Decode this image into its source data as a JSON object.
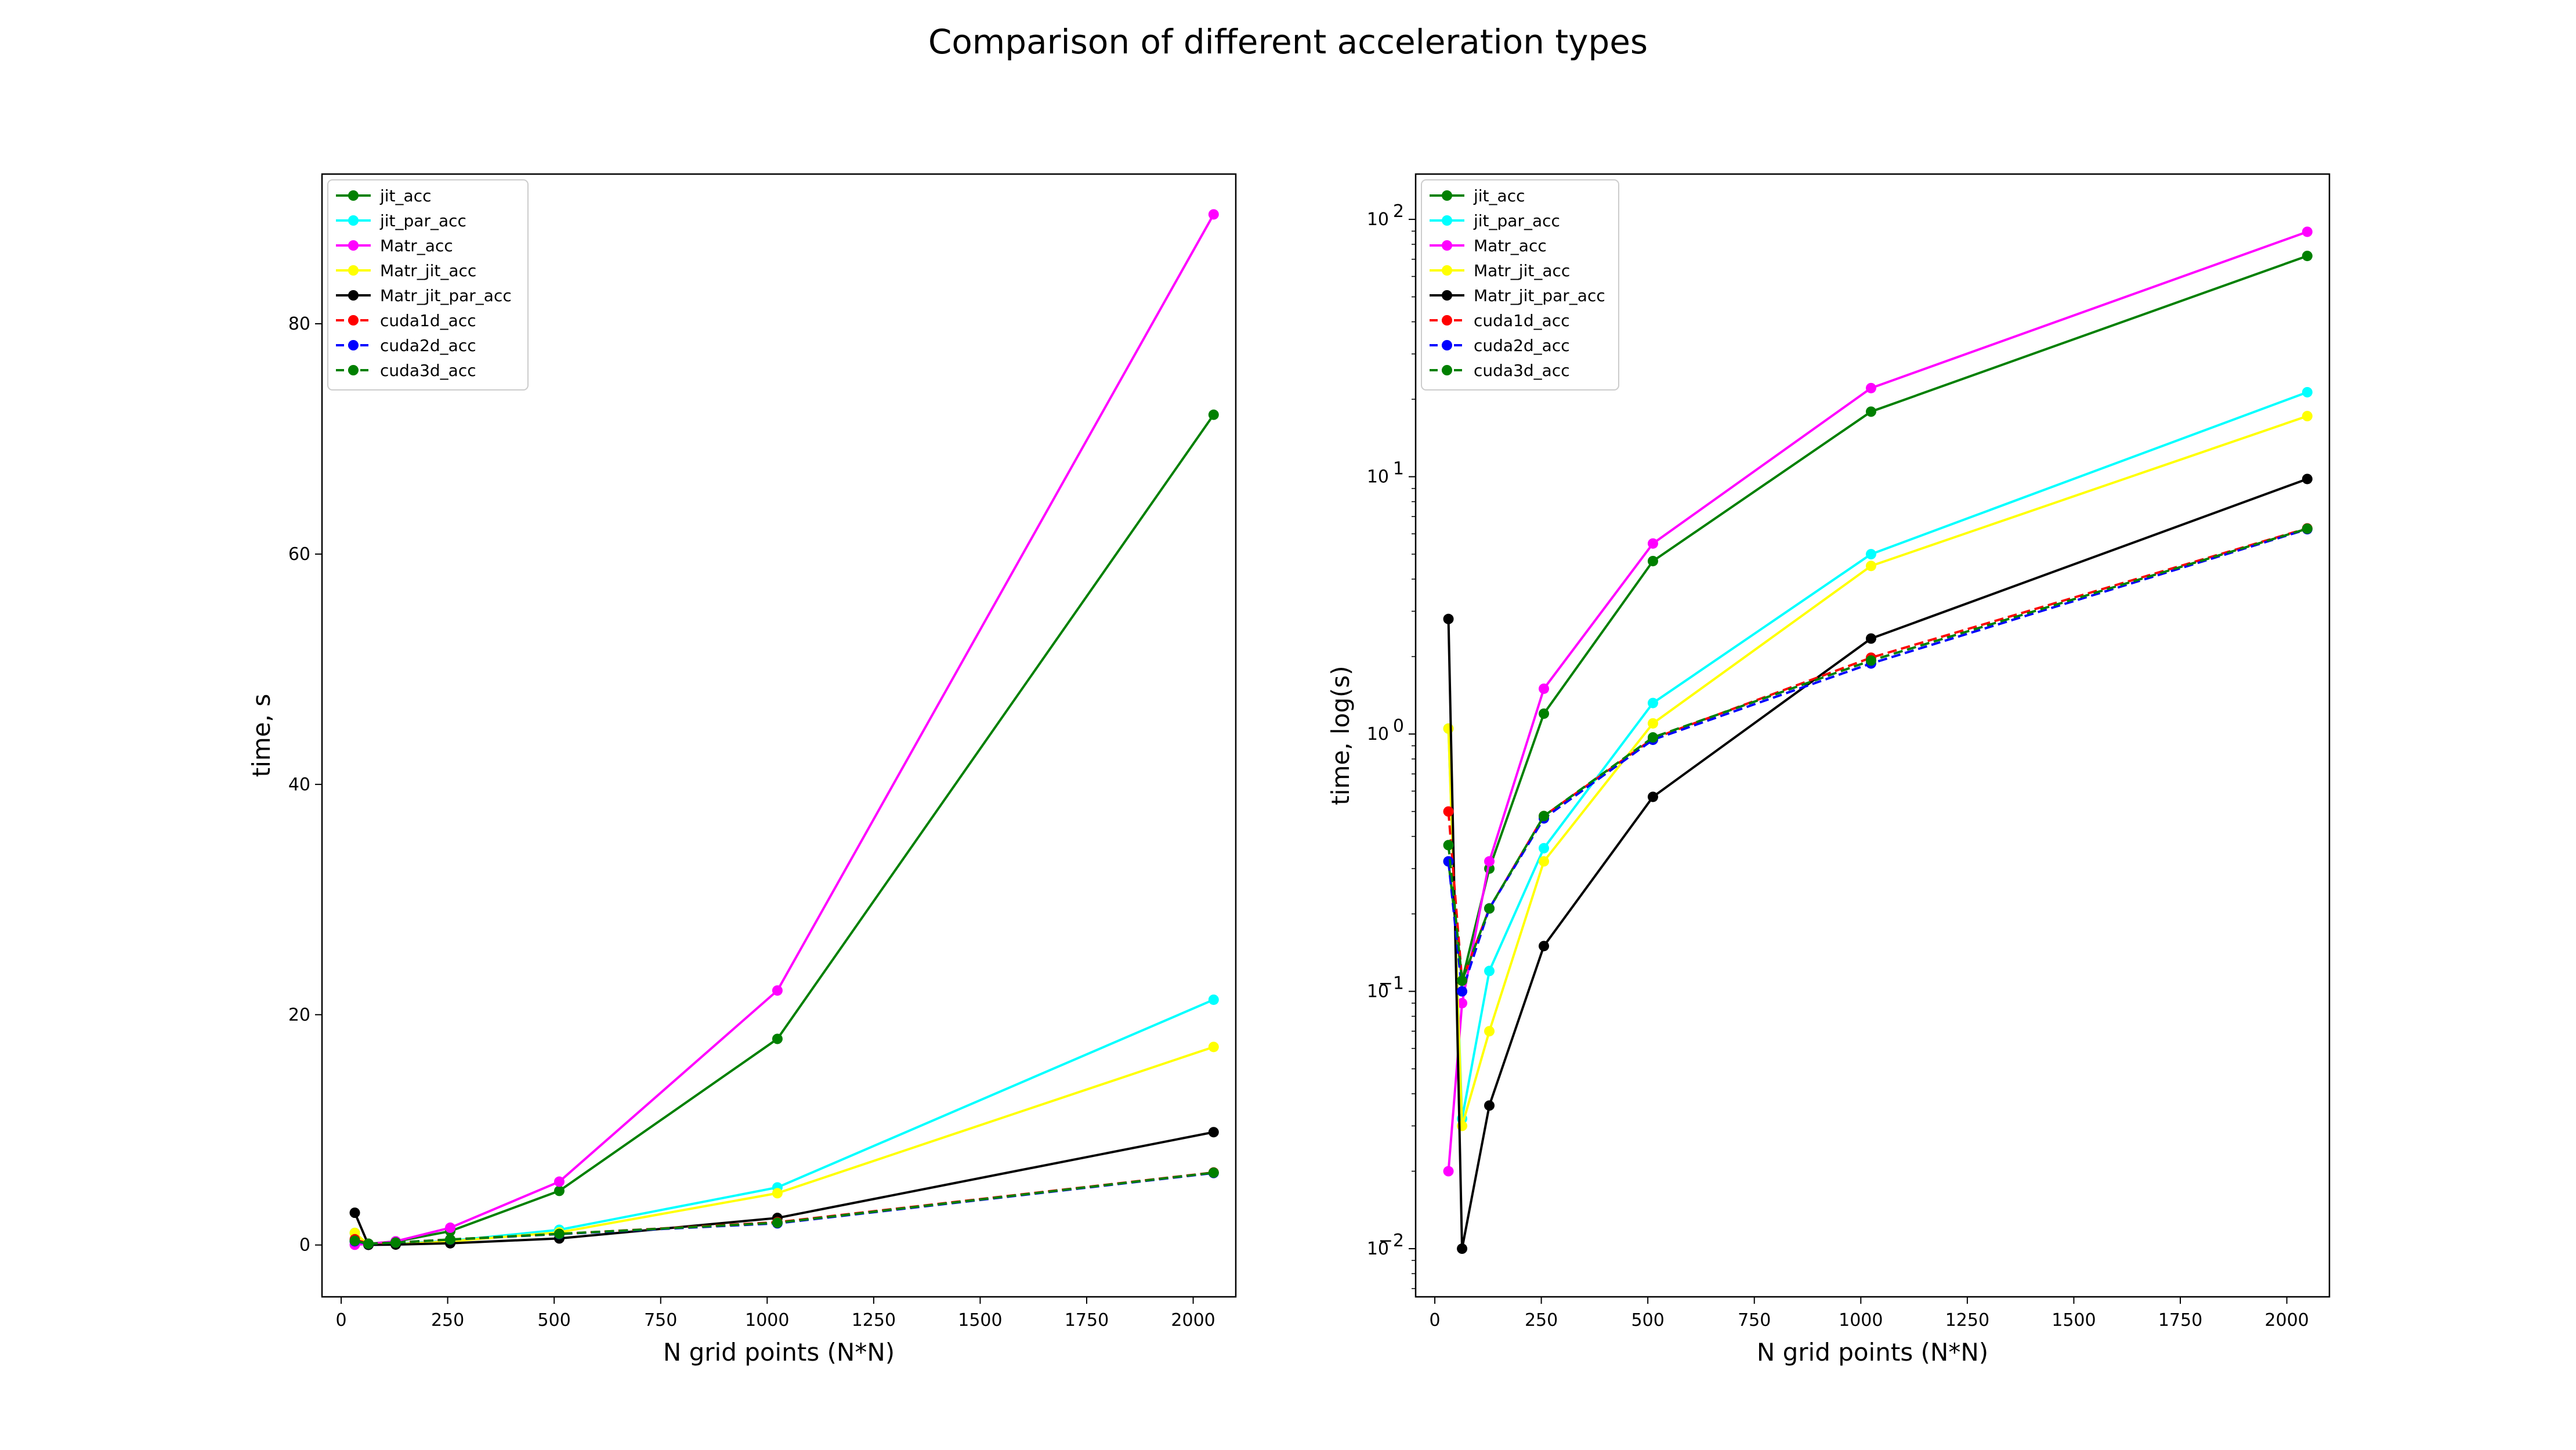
{
  "figure": {
    "title": "Comparison of different acceleration types"
  },
  "chart_data": [
    {
      "type": "line",
      "yscale": "linear",
      "xlabel": "N grid points (N*N)",
      "ylabel": "time, s",
      "xlim": [
        -45,
        2100
      ],
      "ylim": [
        -4.5,
        93
      ],
      "xticks": [
        0,
        250,
        500,
        750,
        1000,
        1250,
        1500,
        1750,
        2000
      ],
      "yticks": [
        0,
        20,
        40,
        60,
        80
      ],
      "grid": false,
      "legend_position": "upper-left",
      "x": [
        32,
        64,
        128,
        256,
        512,
        1024,
        2048
      ],
      "series": [
        {
          "name": "jit_acc",
          "color": "#008000",
          "style": "solid",
          "values": [
            0.32,
            0.11,
            0.3,
            1.2,
            4.7,
            17.9,
            72.1
          ]
        },
        {
          "name": "jit_par_acc",
          "color": "#00ffff",
          "style": "solid",
          "values": [
            1.05,
            0.032,
            0.12,
            0.36,
            1.32,
            5.0,
            21.3
          ]
        },
        {
          "name": "Matr_acc",
          "color": "#ff00ff",
          "style": "solid",
          "values": [
            0.02,
            0.09,
            0.32,
            1.5,
            5.5,
            22.1,
            89.5
          ]
        },
        {
          "name": "Matr_jit_acc",
          "color": "#ffff00",
          "style": "solid",
          "values": [
            1.05,
            0.03,
            0.07,
            0.32,
            1.1,
            4.5,
            17.2
          ]
        },
        {
          "name": "Matr_jit_par_acc",
          "color": "#000000",
          "style": "solid",
          "values": [
            2.8,
            0.01,
            0.036,
            0.15,
            0.57,
            2.35,
            9.8
          ]
        },
        {
          "name": "cuda1d_acc",
          "color": "#ff0000",
          "style": "dashed",
          "values": [
            0.5,
            0.11,
            0.21,
            0.48,
            0.96,
            1.98,
            6.3
          ]
        },
        {
          "name": "cuda2d_acc",
          "color": "#0000ff",
          "style": "dashed",
          "values": [
            0.32,
            0.1,
            0.21,
            0.47,
            0.95,
            1.88,
            6.25
          ]
        },
        {
          "name": "cuda3d_acc",
          "color": "#008000",
          "style": "dashed",
          "values": [
            0.37,
            0.11,
            0.21,
            0.48,
            0.97,
            1.93,
            6.28
          ]
        }
      ]
    },
    {
      "type": "line",
      "yscale": "log",
      "xlabel": "N grid points (N*N)",
      "ylabel": "time, log(s)",
      "xlim": [
        -45,
        2100
      ],
      "ylim": [
        0.0065,
        150
      ],
      "xticks": [
        0,
        250,
        500,
        750,
        1000,
        1250,
        1500,
        1750,
        2000
      ],
      "yticks": [
        0.01,
        0.1,
        1,
        10,
        100
      ],
      "ytick_labels": [
        [
          "10",
          "−2"
        ],
        [
          "10",
          "−1"
        ],
        [
          "10",
          "0"
        ],
        [
          "10",
          "1"
        ],
        [
          "10",
          "2"
        ]
      ],
      "grid": false,
      "legend_position": "upper-left",
      "x": [
        32,
        64,
        128,
        256,
        512,
        1024,
        2048
      ],
      "series": [
        {
          "name": "jit_acc",
          "color": "#008000",
          "style": "solid",
          "values": [
            0.32,
            0.11,
            0.3,
            1.2,
            4.7,
            17.9,
            72.1
          ]
        },
        {
          "name": "jit_par_acc",
          "color": "#00ffff",
          "style": "solid",
          "values": [
            1.05,
            0.032,
            0.12,
            0.36,
            1.32,
            5.0,
            21.3
          ]
        },
        {
          "name": "Matr_acc",
          "color": "#ff00ff",
          "style": "solid",
          "values": [
            0.02,
            0.09,
            0.32,
            1.5,
            5.5,
            22.1,
            89.5
          ]
        },
        {
          "name": "Matr_jit_acc",
          "color": "#ffff00",
          "style": "solid",
          "values": [
            1.05,
            0.03,
            0.07,
            0.32,
            1.1,
            4.5,
            17.2
          ]
        },
        {
          "name": "Matr_jit_par_acc",
          "color": "#000000",
          "style": "solid",
          "values": [
            2.8,
            0.01,
            0.036,
            0.15,
            0.57,
            2.35,
            9.8
          ]
        },
        {
          "name": "cuda1d_acc",
          "color": "#ff0000",
          "style": "dashed",
          "values": [
            0.5,
            0.11,
            0.21,
            0.48,
            0.96,
            1.98,
            6.3
          ]
        },
        {
          "name": "cuda2d_acc",
          "color": "#0000ff",
          "style": "dashed",
          "values": [
            0.32,
            0.1,
            0.21,
            0.47,
            0.95,
            1.88,
            6.25
          ]
        },
        {
          "name": "cuda3d_acc",
          "color": "#008000",
          "style": "dashed",
          "values": [
            0.37,
            0.11,
            0.21,
            0.48,
            0.97,
            1.93,
            6.28
          ]
        }
      ]
    }
  ]
}
